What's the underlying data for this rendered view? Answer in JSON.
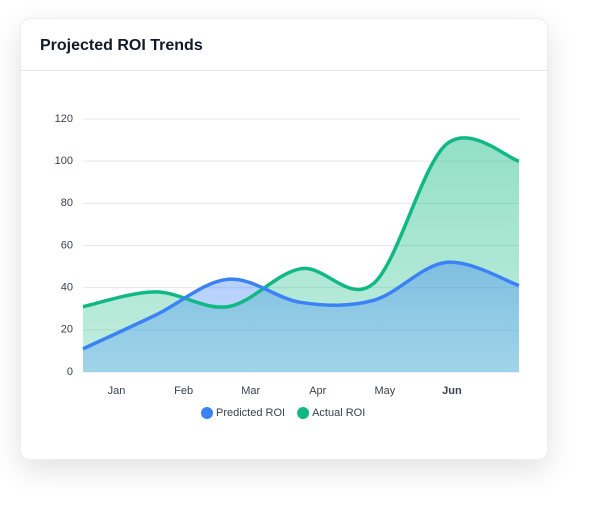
{
  "chart_data": {
    "type": "area",
    "title": "Projected ROI Trends",
    "categories": [
      "Jan",
      "Feb",
      "Mar",
      "Apr",
      "May",
      "Jun",
      null
    ],
    "series": [
      {
        "name": "Predicted ROI",
        "color": "#3b82f6",
        "values": [
          11,
          27,
          44,
          33,
          34,
          52,
          41
        ]
      },
      {
        "name": "Actual ROI",
        "color": "#10b981",
        "values": [
          31,
          38,
          31,
          49,
          42,
          108,
          100
        ]
      }
    ],
    "ylim": [
      0,
      120
    ],
    "yticks": [
      0,
      20,
      40,
      60,
      80,
      100,
      120
    ],
    "grid": true,
    "legend": "bottom"
  }
}
